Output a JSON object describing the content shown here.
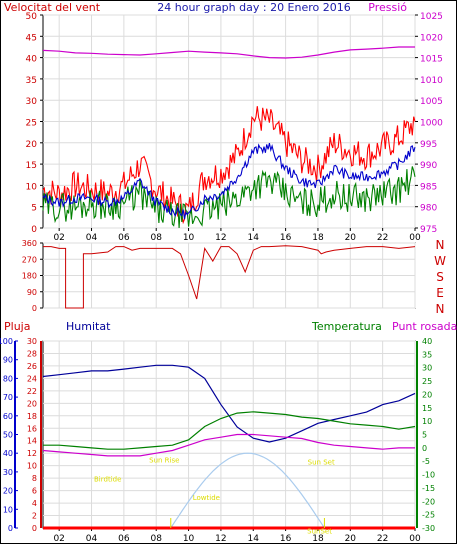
{
  "colors": {
    "wind_gust": "#ff0000",
    "wind_avg": "#0000cc",
    "wind_other": "#008000",
    "pressure": "#cc00cc",
    "direction": "#cc0000",
    "rain": "#ff0000",
    "humidity": "#000099",
    "temperature": "#008000",
    "dewpoint": "#cc00cc",
    "sun": "#aaccee",
    "events": "#dddd00",
    "axis": "#000000",
    "grid": "#dcdcdc"
  },
  "chart_data": [
    {
      "type": "line",
      "title": "24 hour graph day : 20 Enero 2016",
      "left_label": "Velocitat del vent",
      "right_label": "Pressió",
      "x_ticks": [
        "02",
        "04",
        "06",
        "08",
        "10",
        "12",
        "14",
        "16",
        "18",
        "20",
        "22",
        "00"
      ],
      "x_range": [
        1,
        24
      ],
      "y_ticks": [
        0,
        5,
        10,
        15,
        20,
        25,
        30,
        35,
        40,
        45,
        50
      ],
      "y_range": [
        0,
        50
      ],
      "y2_ticks": [
        975,
        980,
        985,
        990,
        995,
        1000,
        1005,
        1010,
        1015,
        1020,
        1025
      ],
      "y2_range": [
        975,
        1025
      ],
      "x_hours": [
        1,
        2,
        3,
        4,
        5,
        6,
        7,
        8,
        9,
        10,
        11,
        12,
        13,
        14,
        15,
        16,
        17,
        18,
        19,
        20,
        21,
        22,
        23,
        24
      ],
      "series": [
        {
          "key": "gust",
          "values": [
            9,
            8,
            10,
            9,
            8,
            10,
            15,
            9,
            6,
            4,
            12,
            13,
            17,
            26,
            25,
            20,
            16,
            14,
            20,
            18,
            17,
            19,
            21,
            25
          ]
        },
        {
          "key": "avg",
          "values": [
            7,
            6,
            7,
            7,
            6,
            7,
            11,
            6,
            4,
            3,
            7,
            8,
            12,
            18,
            19,
            14,
            11,
            10,
            14,
            12,
            12,
            13,
            15,
            19
          ]
        },
        {
          "key": "other",
          "values": [
            5,
            5,
            5,
            6,
            5,
            6,
            8,
            4,
            3,
            2,
            4,
            5,
            7,
            10,
            11,
            8,
            6,
            6,
            8,
            7,
            7,
            8,
            9,
            12
          ]
        },
        {
          "key": "pressure",
          "axis": "y2",
          "values": [
            1016.7,
            1016.5,
            1016.1,
            1016.0,
            1015.8,
            1015.7,
            1015.6,
            1015.9,
            1016.2,
            1016.5,
            1016.3,
            1016.1,
            1015.9,
            1015.4,
            1015.0,
            1014.9,
            1015.1,
            1015.6,
            1016.3,
            1016.8,
            1017.0,
            1017.2,
            1017.5,
            1017.5
          ]
        }
      ]
    },
    {
      "type": "line",
      "y_ticks": [
        0,
        90,
        180,
        270,
        360
      ],
      "y_range": [
        0,
        360
      ],
      "right_labels": [
        "N",
        "W",
        "S",
        "E",
        "N"
      ],
      "x_ticks": [
        "02",
        "04",
        "06",
        "08",
        "10",
        "12",
        "14",
        "16",
        "18",
        "20",
        "22",
        "00"
      ],
      "series": [
        {
          "key": "direction",
          "x": [
            1,
            1.5,
            2,
            2.4,
            2.4,
            3.1,
            3.5,
            3.5,
            4,
            5,
            5.5,
            6,
            6.5,
            7,
            7.5,
            8,
            8.5,
            9,
            9.5,
            10,
            10.5,
            11,
            11.5,
            12,
            12.5,
            13,
            13.5,
            14,
            14.5,
            15,
            16,
            17,
            18,
            18.2,
            18.5,
            19,
            20,
            21,
            22,
            23,
            24
          ],
          "values": [
            340,
            340,
            330,
            330,
            0,
            0,
            0,
            300,
            300,
            310,
            340,
            340,
            320,
            330,
            330,
            330,
            330,
            330,
            300,
            180,
            50,
            330,
            260,
            340,
            340,
            300,
            200,
            320,
            340,
            340,
            345,
            340,
            320,
            300,
            310,
            320,
            330,
            340,
            340,
            330,
            340
          ]
        }
      ]
    },
    {
      "type": "line",
      "left_labels": [
        "Pluja",
        "Humitat"
      ],
      "right_labels": [
        "Temperatura",
        "Punt rosada"
      ],
      "x_ticks": [
        "02",
        "04",
        "06",
        "08",
        "10",
        "12",
        "14",
        "16",
        "18",
        "20",
        "22",
        "00"
      ],
      "x_range": [
        1,
        24
      ],
      "humidity_ticks": [
        0,
        10,
        20,
        30,
        40,
        50,
        60,
        70,
        80,
        90,
        100
      ],
      "humidity_range": [
        0,
        100
      ],
      "rain_ticks": [
        0,
        2,
        4,
        6,
        8,
        10,
        12,
        14,
        16,
        18,
        20,
        22,
        24,
        26,
        28,
        30
      ],
      "rain_range": [
        0,
        30
      ],
      "temp_ticks": [
        -30,
        -25,
        -20,
        -15,
        -10,
        -5,
        0,
        5,
        10,
        15,
        20,
        25,
        30,
        35,
        40
      ],
      "temp_range": [
        -30,
        40
      ],
      "annotations": [
        "Birdtide",
        "Sun Rise",
        "Lowtide",
        "Sun Set",
        "SunSet"
      ],
      "x_hours": [
        1,
        2,
        3,
        4,
        5,
        6,
        7,
        8,
        9,
        10,
        11,
        12,
        13,
        14,
        15,
        16,
        17,
        18,
        19,
        20,
        21,
        22,
        23,
        24
      ],
      "series": [
        {
          "key": "humidity",
          "values": [
            81,
            82,
            83,
            84,
            84,
            85,
            86,
            87,
            87,
            86,
            80,
            66,
            54,
            48,
            46,
            48,
            52,
            56,
            58,
            60,
            62,
            66,
            68,
            72
          ]
        },
        {
          "key": "temperature",
          "values": [
            1,
            1,
            0.5,
            0,
            -0.5,
            -0.5,
            0,
            0.5,
            1,
            3,
            8,
            11,
            13,
            13.5,
            13,
            12.5,
            11.5,
            11,
            10,
            9,
            8.5,
            8,
            7,
            8
          ]
        },
        {
          "key": "dewpoint",
          "values": [
            -1,
            -1.5,
            -2,
            -2.5,
            -3,
            -3,
            -3,
            -2,
            -1,
            1,
            3,
            4,
            5,
            5,
            4.5,
            4,
            3.5,
            2,
            1,
            0.5,
            0,
            -0.5,
            0,
            0
          ]
        },
        {
          "key": "rain",
          "values": [
            0,
            0,
            0,
            0,
            0,
            0,
            0,
            0,
            0,
            0,
            0,
            0,
            0,
            0,
            0,
            0,
            0,
            0,
            0,
            0,
            0,
            0,
            0,
            0
          ]
        }
      ],
      "sun_arc": {
        "rise": 8.9,
        "set": 18.4,
        "peak_humidity_level": 40
      }
    }
  ]
}
